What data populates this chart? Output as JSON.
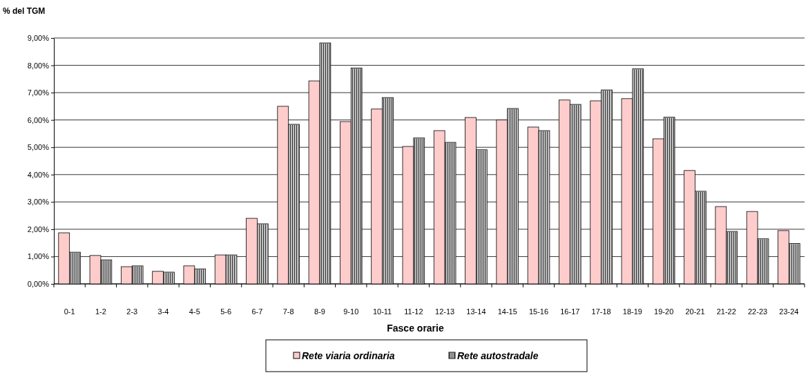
{
  "chart_data": {
    "type": "bar",
    "ylabel": "% del TGM",
    "xlabel": "Fasce orarie",
    "categories": [
      "0-1",
      "1-2",
      "2-3",
      "3-4",
      "4-5",
      "5-6",
      "6-7",
      "7-8",
      "8-9",
      "9-10",
      "10-11",
      "11-12",
      "12-13",
      "13-14",
      "14-15",
      "15-16",
      "16-17",
      "17-18",
      "18-19",
      "19-20",
      "20-21",
      "21-22",
      "22-23",
      "23-24"
    ],
    "series": [
      {
        "name": "Rete viaria ordinaria",
        "color": "#ffcccc",
        "values": [
          1.87,
          1.04,
          0.63,
          0.46,
          0.66,
          1.06,
          2.4,
          6.5,
          7.43,
          5.94,
          6.4,
          5.03,
          5.61,
          6.09,
          6.0,
          5.74,
          6.73,
          6.7,
          6.78,
          5.31,
          4.15,
          2.83,
          2.65,
          1.95
        ]
      },
      {
        "name": "Rete autostradale",
        "color": "#c0c0c0",
        "values": [
          1.16,
          0.88,
          0.66,
          0.43,
          0.55,
          1.06,
          2.2,
          5.84,
          8.82,
          7.9,
          6.82,
          5.34,
          5.18,
          4.91,
          6.42,
          5.61,
          6.57,
          7.1,
          7.87,
          6.1,
          3.39,
          1.92,
          1.65,
          1.48
        ]
      }
    ],
    "ylim": [
      0,
      9
    ],
    "yticks": [
      {
        "value": 0,
        "label": "0,00%"
      },
      {
        "value": 1,
        "label": "1,00%"
      },
      {
        "value": 2,
        "label": "2,00%"
      },
      {
        "value": 3,
        "label": "3,00%"
      },
      {
        "value": 4,
        "label": "4,00%"
      },
      {
        "value": 5,
        "label": "5,00%"
      },
      {
        "value": 6,
        "label": "6,00%"
      },
      {
        "value": 7,
        "label": "7,00%"
      },
      {
        "value": 8,
        "label": "8,00%"
      },
      {
        "value": 9,
        "label": "9,00%"
      }
    ],
    "grid": "y",
    "legend": "bottom"
  }
}
